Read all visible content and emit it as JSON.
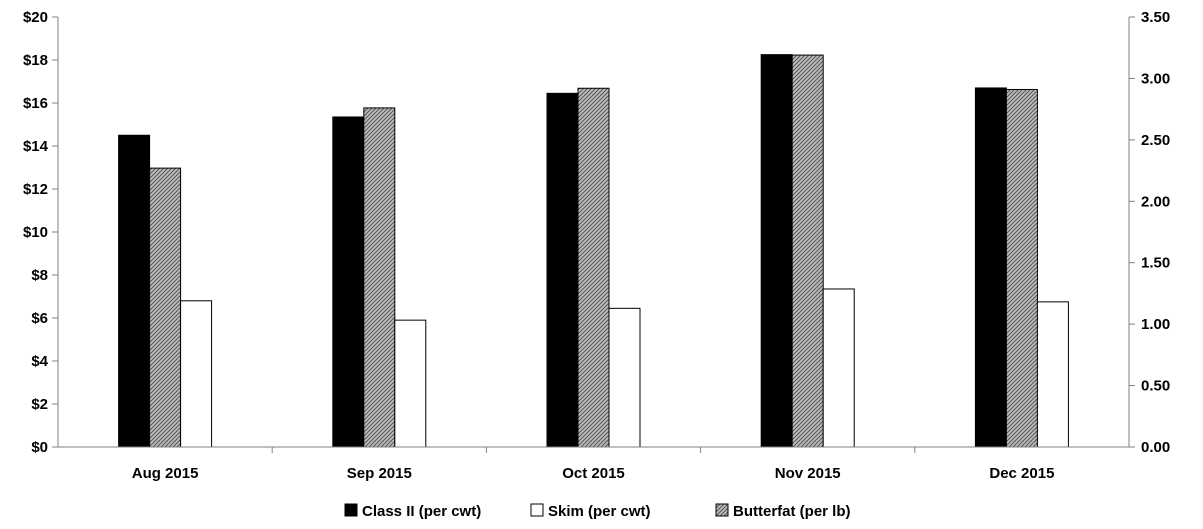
{
  "chart_data": {
    "type": "bar",
    "categories": [
      "Aug 2015",
      "Sep 2015",
      "Oct 2015",
      "Nov 2015",
      "Dec 2015"
    ],
    "series": [
      {
        "name": "Class II (per cwt)",
        "axis": "left",
        "fill": "solid-black",
        "values": [
          14.5,
          15.35,
          16.45,
          18.25,
          16.7
        ]
      },
      {
        "name": "Butterfat (per lb)",
        "axis": "right",
        "fill": "gray-hatch",
        "values": [
          2.27,
          2.76,
          2.92,
          3.19,
          2.91
        ]
      },
      {
        "name": "Skim (per cwt)",
        "axis": "left",
        "fill": "white",
        "values": [
          6.8,
          5.9,
          6.45,
          7.35,
          6.75
        ]
      }
    ],
    "left_axis": {
      "ylim": [
        0,
        20
      ],
      "ticks": [
        0,
        2,
        4,
        6,
        8,
        10,
        12,
        14,
        16,
        18,
        20
      ],
      "tick_labels": [
        "$0",
        "$2",
        "$4",
        "$6",
        "$8",
        "$10",
        "$12",
        "$14",
        "$16",
        "$18",
        "$20"
      ]
    },
    "right_axis": {
      "ylim": [
        0,
        3.5
      ],
      "ticks": [
        0,
        0.5,
        1,
        1.5,
        2,
        2.5,
        3,
        3.5
      ],
      "tick_labels": [
        "0.00",
        "0.50",
        "1.00",
        "1.50",
        "2.00",
        "2.50",
        "3.00",
        "3.50"
      ]
    },
    "legend": {
      "position": "bottom",
      "entries": [
        "Class II (per cwt)",
        "Skim (per cwt)",
        "Butterfat (per lb)"
      ]
    },
    "grid": false,
    "colors": {
      "class2": "#000000",
      "skim": "#ffffff",
      "butterfat": "#9e9e9e",
      "axis": "#808080"
    }
  }
}
